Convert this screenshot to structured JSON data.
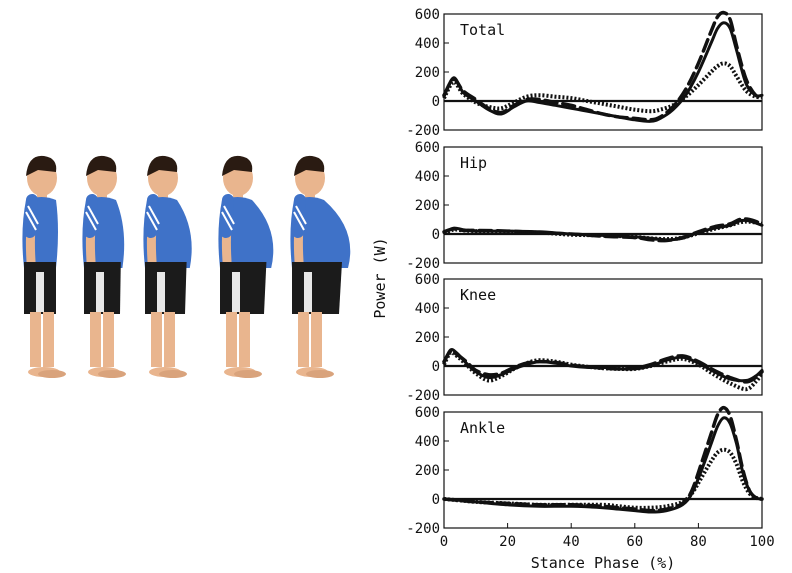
{
  "chart_data": {
    "type": "line",
    "xlabel": "Stance Phase (%)",
    "ylabel": "Power (W)",
    "xlim": [
      0,
      100
    ],
    "ylim": [
      -200,
      600
    ],
    "x_ticks": [
      0,
      20,
      40,
      60,
      80,
      100
    ],
    "y_ticks": [
      -200,
      0,
      200,
      400,
      600
    ],
    "grid": false,
    "colors": {
      "ink": "#111111",
      "skin": "#e9b58e",
      "shirt": "#3f72c8",
      "shorts": "#1b1b1b",
      "hair": "#2a1b12"
    },
    "panels": [
      {
        "title": "Total",
        "series": [
          {
            "style": "solid",
            "x": [
              0,
              3,
              6,
              10,
              14,
              18,
              22,
              26,
              30,
              35,
              40,
              45,
              50,
              55,
              60,
              65,
              68,
              72,
              76,
              80,
              84,
              86,
              88,
              90,
              92,
              95,
              98,
              100
            ],
            "y": [
              30,
              160,
              60,
              0,
              -60,
              -90,
              -40,
              0,
              -10,
              -30,
              -50,
              -70,
              -90,
              -110,
              -130,
              -140,
              -120,
              -60,
              40,
              200,
              400,
              500,
              540,
              500,
              350,
              120,
              40,
              40
            ]
          },
          {
            "style": "dashed",
            "x": [
              0,
              3,
              6,
              10,
              14,
              18,
              22,
              26,
              30,
              35,
              40,
              45,
              50,
              55,
              60,
              65,
              68,
              72,
              76,
              80,
              84,
              86,
              88,
              90,
              92,
              95,
              98,
              100
            ],
            "y": [
              40,
              150,
              70,
              10,
              -50,
              -80,
              -30,
              10,
              10,
              -10,
              -30,
              -60,
              -90,
              -110,
              -120,
              -130,
              -110,
              -40,
              80,
              260,
              480,
              580,
              610,
              560,
              380,
              150,
              40,
              40
            ]
          },
          {
            "style": "dotted",
            "x": [
              0,
              3,
              6,
              10,
              14,
              18,
              22,
              26,
              30,
              35,
              40,
              45,
              50,
              55,
              60,
              65,
              68,
              72,
              76,
              80,
              84,
              86,
              88,
              90,
              92,
              95,
              98,
              100
            ],
            "y": [
              20,
              130,
              50,
              -10,
              -40,
              -50,
              -10,
              30,
              40,
              30,
              20,
              0,
              -20,
              -40,
              -60,
              -70,
              -60,
              -30,
              30,
              110,
              200,
              240,
              260,
              240,
              170,
              70,
              30,
              30
            ]
          }
        ]
      },
      {
        "title": "Hip",
        "series": [
          {
            "style": "solid",
            "x": [
              0,
              3,
              6,
              10,
              20,
              30,
              40,
              50,
              60,
              65,
              70,
              75,
              80,
              85,
              90,
              93,
              96,
              100
            ],
            "y": [
              10,
              40,
              30,
              20,
              20,
              15,
              0,
              -10,
              -20,
              -30,
              -40,
              -30,
              10,
              40,
              60,
              90,
              90,
              60
            ]
          },
          {
            "style": "dashed",
            "x": [
              0,
              3,
              6,
              10,
              20,
              30,
              40,
              50,
              60,
              65,
              70,
              75,
              80,
              85,
              90,
              93,
              96,
              100
            ],
            "y": [
              15,
              35,
              25,
              25,
              20,
              10,
              0,
              -15,
              -25,
              -40,
              -45,
              -25,
              15,
              50,
              70,
              100,
              100,
              70
            ]
          },
          {
            "style": "dotted",
            "x": [
              0,
              3,
              6,
              10,
              20,
              30,
              40,
              50,
              60,
              65,
              70,
              75,
              80,
              85,
              90,
              93,
              96,
              100
            ],
            "y": [
              5,
              30,
              25,
              20,
              15,
              10,
              -5,
              -10,
              -20,
              -30,
              -35,
              -25,
              5,
              35,
              60,
              80,
              85,
              70
            ]
          }
        ]
      },
      {
        "title": "Knee",
        "series": [
          {
            "style": "solid",
            "x": [
              0,
              2,
              4,
              7,
              10,
              14,
              18,
              22,
              26,
              30,
              35,
              40,
              45,
              50,
              55,
              60,
              65,
              70,
              75,
              80,
              85,
              90,
              95,
              98,
              100
            ],
            "y": [
              20,
              110,
              90,
              20,
              -40,
              -80,
              -60,
              -20,
              10,
              30,
              20,
              0,
              -10,
              -10,
              -20,
              -20,
              0,
              40,
              60,
              20,
              -40,
              -90,
              -100,
              -70,
              -30
            ]
          },
          {
            "style": "dashed",
            "x": [
              0,
              2,
              4,
              7,
              10,
              14,
              18,
              22,
              26,
              30,
              35,
              40,
              45,
              50,
              55,
              60,
              65,
              70,
              75,
              80,
              85,
              90,
              95,
              98,
              100
            ],
            "y": [
              30,
              100,
              80,
              30,
              -30,
              -60,
              -50,
              -10,
              20,
              30,
              25,
              5,
              -5,
              -15,
              -20,
              -15,
              10,
              50,
              70,
              30,
              -30,
              -80,
              -110,
              -80,
              -40
            ]
          },
          {
            "style": "dotted",
            "x": [
              0,
              2,
              4,
              7,
              10,
              14,
              18,
              22,
              26,
              30,
              35,
              40,
              45,
              50,
              55,
              60,
              65,
              70,
              75,
              80,
              85,
              90,
              95,
              98,
              100
            ],
            "y": [
              10,
              90,
              70,
              10,
              -50,
              -100,
              -70,
              -20,
              20,
              40,
              30,
              10,
              -5,
              -15,
              -20,
              -20,
              0,
              30,
              50,
              10,
              -60,
              -120,
              -160,
              -110,
              -50
            ]
          }
        ]
      },
      {
        "title": "Ankle",
        "series": [
          {
            "style": "solid",
            "x": [
              0,
              5,
              10,
              20,
              30,
              40,
              50,
              55,
              60,
              65,
              70,
              75,
              78,
              81,
              84,
              86,
              88,
              90,
              92,
              94,
              96,
              98,
              100
            ],
            "y": [
              0,
              -10,
              -20,
              -40,
              -50,
              -50,
              -60,
              -70,
              -80,
              -90,
              -80,
              -40,
              40,
              200,
              380,
              500,
              560,
              520,
              380,
              180,
              60,
              10,
              0
            ]
          },
          {
            "style": "dashed",
            "x": [
              0,
              5,
              10,
              20,
              30,
              40,
              50,
              55,
              60,
              65,
              70,
              75,
              78,
              81,
              84,
              86,
              88,
              90,
              92,
              94,
              96,
              98,
              100
            ],
            "y": [
              0,
              -10,
              -20,
              -30,
              -40,
              -40,
              -50,
              -60,
              -70,
              -80,
              -70,
              -30,
              60,
              250,
              450,
              580,
              630,
              570,
              400,
              200,
              60,
              10,
              0
            ]
          },
          {
            "style": "dotted",
            "x": [
              0,
              5,
              10,
              20,
              30,
              40,
              50,
              55,
              60,
              65,
              70,
              75,
              78,
              81,
              84,
              86,
              88,
              90,
              92,
              94,
              96,
              98,
              100
            ],
            "y": [
              0,
              -10,
              -20,
              -30,
              -40,
              -40,
              -40,
              -50,
              -60,
              -60,
              -50,
              -20,
              40,
              150,
              260,
              320,
              340,
              320,
              240,
              120,
              40,
              10,
              0
            ]
          }
        ]
      }
    ]
  }
}
